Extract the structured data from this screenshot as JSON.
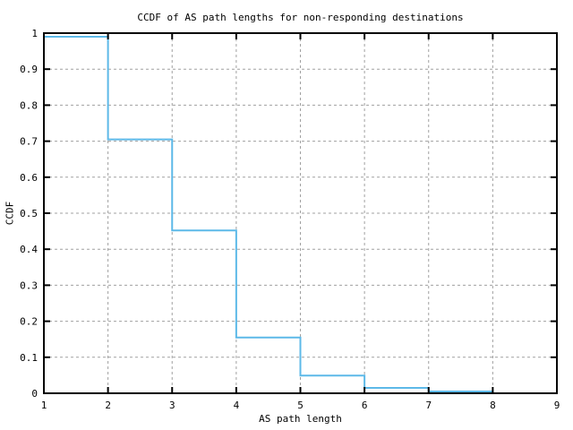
{
  "chart_data": {
    "type": "line",
    "style": "steps",
    "title": "CCDF of AS path lengths for non-responding destinations",
    "xlabel": "AS path length",
    "ylabel": "CCDF",
    "xlim": [
      1,
      9
    ],
    "ylim": [
      0,
      1
    ],
    "x_ticks": [
      1,
      2,
      3,
      4,
      5,
      6,
      7,
      8,
      9
    ],
    "x_tick_labels": [
      "1",
      "2",
      "3",
      "4",
      "5",
      "6",
      "7",
      "8",
      "9"
    ],
    "y_ticks": [
      0,
      0.1,
      0.2,
      0.3,
      0.4,
      0.5,
      0.6,
      0.7,
      0.8,
      0.9,
      1
    ],
    "y_tick_labels": [
      "0",
      "0.1",
      "0.2",
      "0.3",
      "0.4",
      "0.5",
      "0.6",
      "0.7",
      "0.8",
      "0.9",
      "1"
    ],
    "grid": true,
    "grid_style": "dashed",
    "legend": "none",
    "colors": {
      "line": "#5db9e8",
      "grid": "#a0a0a0",
      "axis": "#000000",
      "text": "#000000",
      "background": "#ffffff"
    },
    "series": [
      {
        "name": "CCDF of AS path length",
        "x": [
          1,
          2,
          3,
          4,
          5,
          6,
          7,
          8
        ],
        "y": [
          0.99,
          0.705,
          0.452,
          0.155,
          0.049,
          0.015,
          0.005,
          0.0
        ]
      }
    ]
  }
}
